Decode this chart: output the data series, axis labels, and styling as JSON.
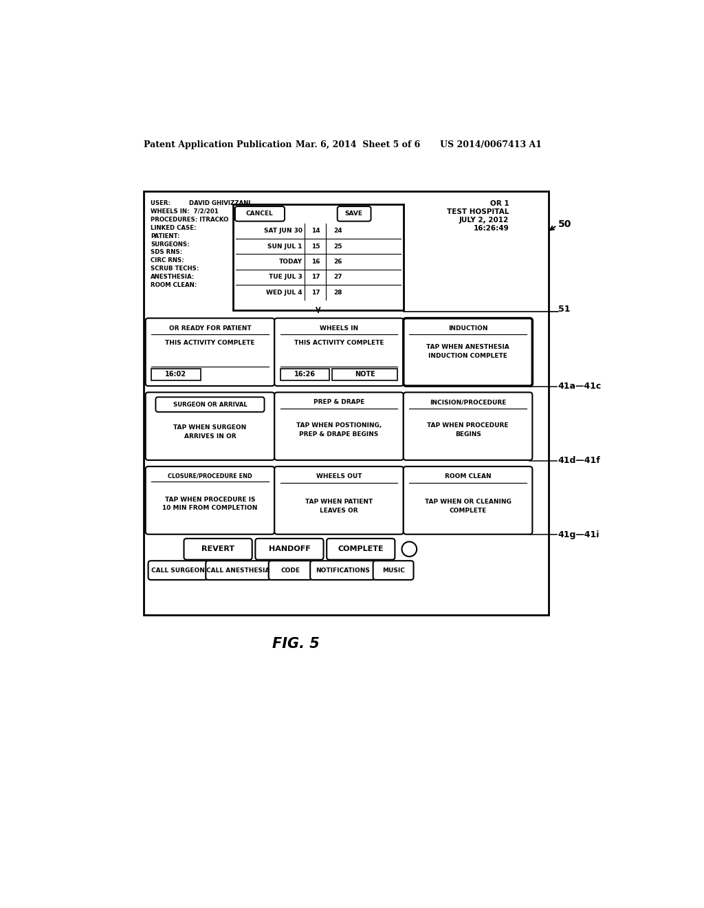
{
  "bg_color": "#ffffff",
  "header_left": "Patent Application Publication",
  "header_mid": "Mar. 6, 2014  Sheet 5 of 6",
  "header_right": "US 2014/0067413 A1",
  "fig_label": "FIG. 5",
  "label_50": "50",
  "label_51": "51",
  "label_41a41c": "41a—41c",
  "label_41d41f": "41d—41f",
  "label_41g41i": "41g—41i",
  "user_info": [
    "USER:         DAVID GHIVIZZANI",
    "WHEELS IN:  7/2/201",
    "PROCEDURES: ITRACKO",
    "LINKED CASE:",
    "PATIENT:",
    "SURGEONS:",
    "SDS RNS:",
    "CIRC RNS:",
    "SCRUB TECHS:",
    "ANESTHESIA:",
    "ROOM CLEAN:"
  ],
  "or_info": [
    "OR 1",
    "TEST HOSPITAL",
    "JULY 2, 2012",
    "16:26:49"
  ],
  "calendar_rows": [
    [
      "SAT JUN 30",
      "14",
      "24"
    ],
    [
      "SUN JUL 1",
      "15",
      "25"
    ],
    [
      "TODAY",
      "16",
      "26"
    ],
    [
      "TUE JUL 3",
      "17",
      "27"
    ],
    [
      "WED JUL 4",
      "17",
      "28"
    ]
  ],
  "cancel_label": "CANCEL",
  "save_label": "SAVE",
  "box1_title": "OR READY FOR PATIENT",
  "box1_sub": "THIS ACTIVITY COMPLETE",
  "box1_time": "16:02",
  "box2_title": "WHEELS IN",
  "box2_sub": "THIS ACTIVITY COMPLETE",
  "box2_time": "16:26",
  "box2_note": "NOTE",
  "box3_title": "INDUCTION",
  "box3_sub1": "TAP WHEN ANESTHESIA",
  "box3_sub2": "INDUCTION COMPLETE",
  "box4_title": "SURGEON OR ARRIVAL",
  "box4_sub1": "TAP WHEN SURGEON",
  "box4_sub2": "ARRIVES IN OR",
  "box5_title": "PREP & DRAPE",
  "box5_sub1": "TAP WHEN POSTIONING,",
  "box5_sub2": "PREP & DRAPE BEGINS",
  "box6_title": "INCISION/PROCEDURE",
  "box6_sub1": "TAP WHEN PROCEDURE",
  "box6_sub2": "BEGINS",
  "box7_title": "CLOSURE/PROCEDURE END",
  "box7_sub1": "TAP WHEN PROCEDURE IS",
  "box7_sub2": "10 MIN FROM COMPLETION",
  "box8_title": "WHEELS OUT",
  "box8_sub1": "TAP WHEN PATIENT",
  "box8_sub2": "LEAVES OR",
  "box9_title": "ROOM CLEAN",
  "box9_sub1": "TAP WHEN OR CLEANING",
  "box9_sub2": "COMPLETE",
  "btn_revert": "REVERT",
  "btn_handoff": "HANDOFF",
  "btn_complete": "COMPLETE",
  "btn_call_surgeon": "CALL SURGEON",
  "btn_call_anesthesia": "CALL ANESTHESIA",
  "btn_code": "CODE",
  "btn_notifications": "NOTIFICATIONS",
  "btn_music": "MUSIC"
}
